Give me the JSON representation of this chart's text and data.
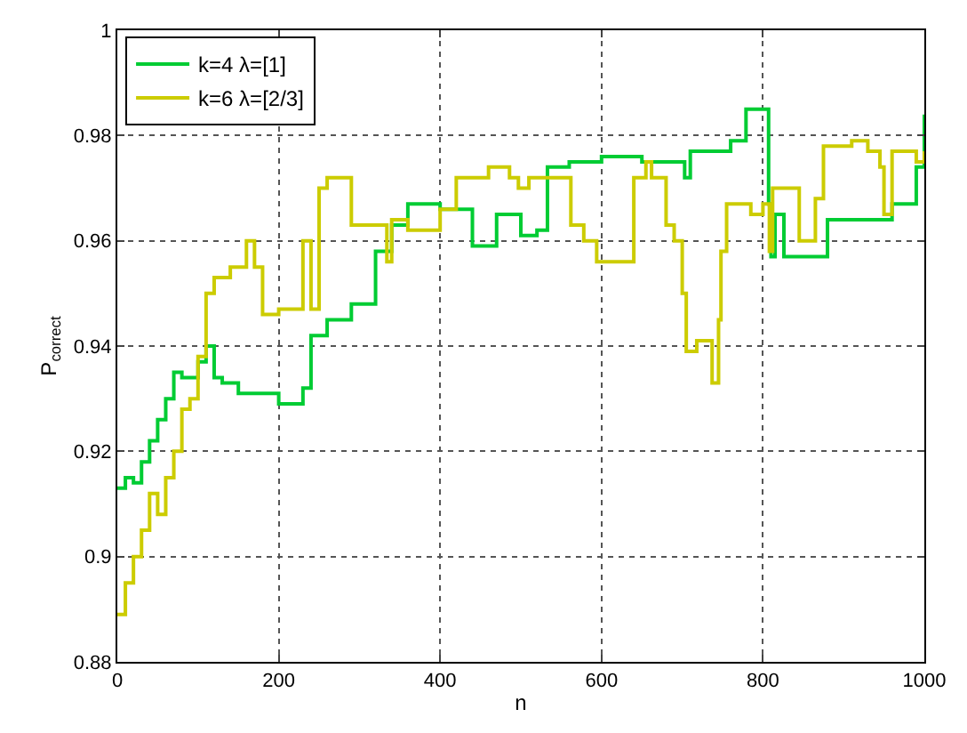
{
  "chart_data": {
    "type": "step",
    "xlabel": "n",
    "ylabel": "P$_{correct}$",
    "xlim": [
      0,
      1000
    ],
    "ylim": [
      0.88,
      1
    ],
    "xticks": [
      0,
      200,
      400,
      600,
      800,
      1000
    ],
    "yticks": [
      0.88,
      0.9,
      0.92,
      0.94,
      0.96,
      0.98,
      1
    ],
    "grid": true,
    "legend": "top left",
    "line_style": "solid",
    "marker": "none",
    "series": [
      {
        "name": "k=4 λ=[1]",
        "color": "#00cc33",
        "x": [
          0,
          10,
          20,
          30,
          40,
          50,
          60,
          70,
          80,
          100,
          110,
          120,
          130,
          150,
          180,
          200,
          230,
          240,
          260,
          290,
          320,
          340,
          360,
          400,
          440,
          470,
          500,
          520,
          533,
          560,
          600,
          650,
          703,
          710,
          720,
          760,
          779,
          807,
          810,
          815,
          826,
          880,
          960,
          990,
          1000
        ],
        "values": [
          0.913,
          0.915,
          0.914,
          0.918,
          0.922,
          0.926,
          0.93,
          0.935,
          0.934,
          0.937,
          0.94,
          0.934,
          0.933,
          0.931,
          0.931,
          0.929,
          0.932,
          0.942,
          0.945,
          0.948,
          0.958,
          0.963,
          0.967,
          0.966,
          0.959,
          0.965,
          0.961,
          0.962,
          0.974,
          0.975,
          0.976,
          0.975,
          0.972,
          0.977,
          0.977,
          0.979,
          0.985,
          0.967,
          0.957,
          0.965,
          0.957,
          0.964,
          0.967,
          0.974,
          0.984
        ]
      },
      {
        "name": "k=6 λ=[2/3]",
        "color": "#cccc00",
        "x": [
          0,
          10,
          20,
          30,
          40,
          50,
          60,
          70,
          80,
          90,
          100,
          110,
          120,
          140,
          160,
          170,
          180,
          200,
          220,
          230,
          240,
          250,
          260,
          280,
          290,
          320,
          334,
          340,
          360,
          400,
          420,
          460,
          486,
          497,
          510,
          530,
          562,
          578,
          594,
          633,
          640,
          655,
          662,
          680,
          690,
          700,
          705,
          718,
          737,
          745,
          748,
          755,
          785,
          800,
          808,
          812,
          845,
          865,
          875,
          910,
          930,
          945,
          950,
          960,
          990,
          1000
        ],
        "values": [
          0.889,
          0.895,
          0.9,
          0.905,
          0.912,
          0.908,
          0.915,
          0.92,
          0.928,
          0.93,
          0.938,
          0.95,
          0.953,
          0.955,
          0.96,
          0.955,
          0.946,
          0.947,
          0.947,
          0.96,
          0.947,
          0.97,
          0.972,
          0.972,
          0.963,
          0.963,
          0.956,
          0.964,
          0.962,
          0.966,
          0.972,
          0.974,
          0.972,
          0.97,
          0.972,
          0.972,
          0.963,
          0.96,
          0.956,
          0.956,
          0.972,
          0.975,
          0.972,
          0.963,
          0.96,
          0.95,
          0.939,
          0.941,
          0.933,
          0.945,
          0.958,
          0.967,
          0.965,
          0.967,
          0.958,
          0.97,
          0.96,
          0.968,
          0.978,
          0.979,
          0.977,
          0.974,
          0.965,
          0.977,
          0.975,
          0.977
        ]
      }
    ]
  }
}
